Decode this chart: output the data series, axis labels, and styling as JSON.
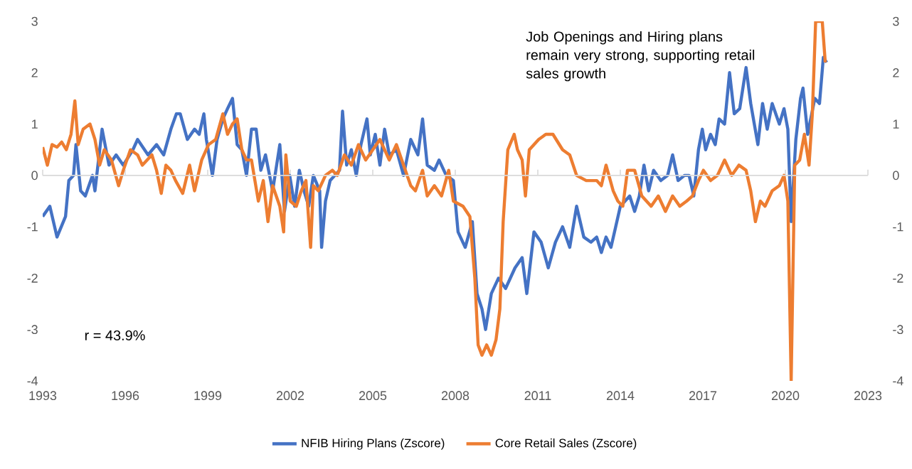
{
  "chart_data": {
    "type": "line",
    "xlim": [
      1993,
      2023
    ],
    "xticks": [
      1993,
      1996,
      1999,
      2002,
      2005,
      2008,
      2011,
      2014,
      2017,
      2020,
      2023
    ],
    "ylim": [
      -4,
      3
    ],
    "yticks": [
      -4,
      -3,
      -2,
      -1,
      0,
      1,
      2,
      3
    ],
    "y2lim": [
      -4,
      3
    ],
    "y2ticks": [
      -4,
      -3,
      -2,
      -1,
      0,
      1,
      2,
      3
    ],
    "legend": "bottom",
    "grid": false,
    "ref_lines": [
      {
        "axis": "y",
        "value": 0,
        "color": "#d9d9d9"
      }
    ],
    "marker": "none",
    "line_style": "solid",
    "annotations": [
      "Job Openings and Hiring plans remain very strong, supporting retail sales growth",
      "r =  43.9%"
    ],
    "series": [
      {
        "name": "NFIB Hiring Plans (Zscore)",
        "color": "#4472c4",
        "x": [
          1993.0,
          1993.26,
          1993.52,
          1993.83,
          1993.95,
          1994.12,
          1994.21,
          1994.38,
          1994.55,
          1994.81,
          1994.9,
          1995.16,
          1995.41,
          1995.67,
          1995.93,
          1996.28,
          1996.45,
          1996.83,
          1997.14,
          1997.4,
          1997.66,
          1997.86,
          1998.0,
          1998.26,
          1998.52,
          1998.69,
          1998.86,
          1998.95,
          1999.17,
          1999.34,
          1999.55,
          1999.72,
          1999.9,
          2000.07,
          2000.24,
          2000.41,
          2000.59,
          2000.76,
          2000.93,
          2001.1,
          2001.36,
          2001.62,
          2001.79,
          2001.98,
          2002.16,
          2002.33,
          2002.5,
          2002.67,
          2002.84,
          2003.07,
          2003.14,
          2003.28,
          2003.45,
          2003.62,
          2003.79,
          2003.9,
          2004.05,
          2004.22,
          2004.4,
          2004.57,
          2004.79,
          2004.91,
          2005.09,
          2005.26,
          2005.43,
          2005.6,
          2005.86,
          2006.12,
          2006.38,
          2006.64,
          2006.81,
          2006.98,
          2007.24,
          2007.41,
          2007.67,
          2007.93,
          2008.1,
          2008.36,
          2008.62,
          2008.79,
          2008.97,
          2009.1,
          2009.31,
          2009.57,
          2009.83,
          2010.17,
          2010.43,
          2010.6,
          2010.86,
          2011.12,
          2011.38,
          2011.64,
          2011.9,
          2012.16,
          2012.41,
          2012.67,
          2012.93,
          2013.14,
          2013.31,
          2013.48,
          2013.66,
          2013.83,
          2014.0,
          2014.17,
          2014.34,
          2014.52,
          2014.69,
          2014.86,
          2015.03,
          2015.21,
          2015.47,
          2015.72,
          2015.9,
          2016.1,
          2016.33,
          2016.5,
          2016.67,
          2016.84,
          2016.98,
          2017.1,
          2017.28,
          2017.45,
          2017.59,
          2017.79,
          2017.97,
          2018.14,
          2018.34,
          2018.57,
          2018.74,
          2019.0,
          2019.17,
          2019.34,
          2019.52,
          2019.78,
          2019.95,
          2020.09,
          2020.21,
          2020.38,
          2020.55,
          2020.64,
          2020.81,
          2021.07,
          2021.24,
          2021.38,
          2021.5
        ],
        "values": [
          -0.8,
          -0.6,
          -1.2,
          -0.8,
          -0.1,
          0.0,
          0.6,
          -0.3,
          -0.4,
          0.0,
          -0.3,
          0.9,
          0.2,
          0.4,
          0.2,
          0.5,
          0.7,
          0.4,
          0.6,
          0.4,
          0.9,
          1.2,
          1.2,
          0.7,
          0.9,
          0.8,
          1.2,
          0.7,
          0.0,
          0.7,
          1.1,
          1.3,
          1.5,
          0.6,
          0.5,
          0.0,
          0.9,
          0.9,
          0.1,
          0.4,
          -0.3,
          0.6,
          -0.7,
          0.0,
          -0.6,
          0.1,
          -0.3,
          -0.6,
          0.0,
          -0.3,
          -1.4,
          -0.5,
          -0.1,
          0.0,
          0.1,
          1.25,
          0.2,
          0.5,
          0.0,
          0.6,
          1.1,
          0.4,
          0.8,
          0.2,
          0.9,
          0.4,
          0.5,
          0.0,
          0.7,
          0.4,
          1.1,
          0.2,
          0.1,
          0.3,
          0.0,
          -0.1,
          -1.1,
          -1.4,
          -0.9,
          -2.3,
          -2.6,
          -3.0,
          -2.3,
          -2.0,
          -2.2,
          -1.8,
          -1.6,
          -2.3,
          -1.1,
          -1.3,
          -1.8,
          -1.3,
          -1.0,
          -1.4,
          -0.6,
          -1.2,
          -1.3,
          -1.2,
          -1.5,
          -1.2,
          -1.4,
          -1.0,
          -0.6,
          -0.5,
          -0.4,
          -0.7,
          -0.4,
          0.2,
          -0.3,
          0.1,
          -0.1,
          0.0,
          0.4,
          -0.1,
          0.0,
          0.0,
          -0.4,
          0.5,
          0.9,
          0.5,
          0.8,
          0.6,
          1.1,
          1.0,
          2.0,
          1.2,
          1.3,
          2.1,
          1.4,
          0.6,
          1.4,
          0.9,
          1.4,
          1.0,
          1.3,
          0.9,
          -0.9,
          0.7,
          1.5,
          1.7,
          0.8,
          1.5,
          1.4,
          2.3,
          2.2
        ]
      },
      {
        "name": "Core Retail Sales (Zscore)",
        "color": "#ed7d31",
        "x": [
          1993.0,
          1993.17,
          1993.34,
          1993.52,
          1993.69,
          1993.86,
          1994.03,
          1994.17,
          1994.29,
          1994.47,
          1994.72,
          1994.9,
          1995.07,
          1995.24,
          1995.5,
          1995.76,
          1995.93,
          1996.19,
          1996.45,
          1996.62,
          1996.97,
          1997.14,
          1997.31,
          1997.48,
          1997.66,
          1997.83,
          1998.09,
          1998.34,
          1998.52,
          1998.78,
          1999.03,
          1999.29,
          1999.55,
          1999.72,
          1999.9,
          2000.07,
          2000.24,
          2000.41,
          2000.59,
          2000.84,
          2001.02,
          2001.19,
          2001.36,
          2001.62,
          2001.76,
          2001.84,
          2002.0,
          2002.22,
          2002.4,
          2002.57,
          2002.74,
          2002.84,
          2003.02,
          2003.28,
          2003.53,
          2003.71,
          2003.97,
          2004.22,
          2004.48,
          2004.74,
          2005.26,
          2005.43,
          2005.6,
          2005.86,
          2006.12,
          2006.38,
          2006.55,
          2006.81,
          2006.98,
          2007.24,
          2007.5,
          2007.76,
          2007.93,
          2008.28,
          2008.53,
          2008.71,
          2008.83,
          2008.97,
          2009.14,
          2009.31,
          2009.48,
          2009.62,
          2009.74,
          2009.91,
          2010.14,
          2010.26,
          2010.43,
          2010.55,
          2010.69,
          2011.03,
          2011.29,
          2011.55,
          2011.9,
          2012.16,
          2012.41,
          2012.76,
          2013.14,
          2013.31,
          2013.48,
          2013.74,
          2013.91,
          2014.09,
          2014.26,
          2014.52,
          2014.78,
          2014.95,
          2015.12,
          2015.38,
          2015.64,
          2015.9,
          2016.16,
          2016.41,
          2016.62,
          2016.84,
          2017.02,
          2017.28,
          2017.53,
          2017.79,
          2018.05,
          2018.31,
          2018.57,
          2018.74,
          2018.91,
          2019.09,
          2019.26,
          2019.52,
          2019.78,
          2019.95,
          2020.09,
          2020.21,
          2020.34,
          2020.52,
          2020.69,
          2020.86,
          2020.98,
          2021.1,
          2021.34,
          2021.45
        ],
        "values": [
          0.55,
          0.2,
          0.6,
          0.55,
          0.65,
          0.5,
          0.8,
          1.45,
          0.6,
          0.9,
          1.0,
          0.7,
          0.2,
          0.5,
          0.3,
          -0.2,
          0.1,
          0.5,
          0.4,
          0.2,
          0.4,
          0.1,
          -0.35,
          0.2,
          0.1,
          -0.1,
          -0.35,
          0.2,
          -0.3,
          0.3,
          0.6,
          0.7,
          1.2,
          0.8,
          1.0,
          1.1,
          0.5,
          0.3,
          0.3,
          -0.5,
          -0.1,
          -0.9,
          -0.2,
          -0.6,
          -1.1,
          0.4,
          -0.5,
          -0.6,
          -0.3,
          -0.1,
          -1.4,
          -0.2,
          -0.3,
          0.0,
          0.1,
          0.0,
          0.4,
          0.2,
          0.6,
          0.3,
          0.7,
          0.5,
          0.3,
          0.6,
          0.2,
          -0.2,
          -0.3,
          0.1,
          -0.4,
          -0.2,
          -0.4,
          0.1,
          -0.5,
          -0.6,
          -0.8,
          -2.0,
          -3.3,
          -3.5,
          -3.3,
          -3.5,
          -3.2,
          -2.6,
          -0.9,
          0.5,
          0.8,
          0.5,
          0.3,
          -0.4,
          0.5,
          0.7,
          0.8,
          0.8,
          0.5,
          0.4,
          0.0,
          -0.1,
          -0.1,
          -0.2,
          0.2,
          -0.3,
          -0.5,
          -0.6,
          0.1,
          0.1,
          -0.4,
          -0.5,
          -0.6,
          -0.4,
          -0.7,
          -0.4,
          -0.6,
          -0.5,
          -0.4,
          -0.1,
          0.1,
          -0.1,
          0.0,
          0.3,
          0.0,
          0.2,
          0.1,
          -0.3,
          -0.9,
          -0.5,
          -0.6,
          -0.3,
          -0.2,
          0.0,
          -0.5,
          -4.0,
          0.2,
          0.3,
          0.8,
          0.2,
          1.2,
          3.0,
          3.0,
          2.2
        ]
      }
    ]
  }
}
